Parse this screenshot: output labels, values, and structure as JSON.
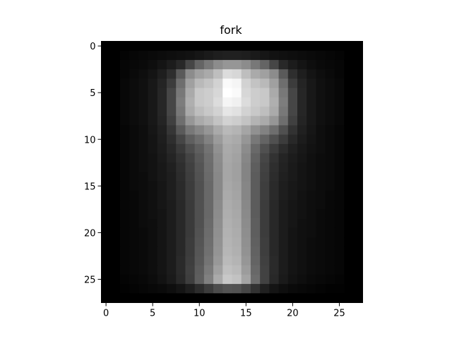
{
  "chart_data": {
    "type": "heatmap",
    "title": "fork",
    "xlabel": "",
    "ylabel": "",
    "colormap": "gray",
    "rows": 28,
    "cols": 28,
    "xlim": [
      -0.5,
      27.5
    ],
    "ylim": [
      27.5,
      -0.5
    ],
    "xticks": [
      0,
      5,
      10,
      15,
      20,
      25
    ],
    "yticks": [
      0,
      5,
      10,
      15,
      20,
      25
    ],
    "grid": false,
    "value_range": [
      0,
      255
    ],
    "description_of_values": "intensity 0 (black) to 255 (white)",
    "values": [
      [
        0,
        0,
        0,
        0,
        0,
        0,
        0,
        0,
        0,
        0,
        0,
        0,
        0,
        0,
        0,
        0,
        0,
        0,
        0,
        0,
        0,
        0,
        0,
        0,
        0,
        0,
        0,
        0
      ],
      [
        0,
        0,
        4,
        6,
        8,
        10,
        12,
        14,
        16,
        18,
        22,
        26,
        30,
        32,
        32,
        30,
        26,
        22,
        18,
        16,
        14,
        12,
        10,
        8,
        6,
        4,
        0,
        0
      ],
      [
        0,
        0,
        6,
        8,
        10,
        14,
        20,
        28,
        40,
        70,
        100,
        120,
        140,
        150,
        150,
        140,
        120,
        100,
        70,
        40,
        28,
        20,
        14,
        10,
        8,
        6,
        0,
        0
      ],
      [
        0,
        0,
        6,
        10,
        14,
        20,
        30,
        46,
        90,
        140,
        160,
        170,
        190,
        220,
        215,
        190,
        170,
        160,
        140,
        90,
        46,
        30,
        20,
        14,
        10,
        6,
        0,
        0
      ],
      [
        0,
        0,
        8,
        12,
        16,
        24,
        36,
        60,
        110,
        160,
        185,
        195,
        210,
        250,
        245,
        210,
        195,
        185,
        160,
        110,
        60,
        36,
        24,
        16,
        12,
        8,
        0,
        0
      ],
      [
        0,
        0,
        8,
        12,
        16,
        24,
        38,
        70,
        120,
        170,
        200,
        205,
        215,
        255,
        250,
        215,
        205,
        200,
        170,
        120,
        70,
        38,
        24,
        16,
        12,
        8,
        0,
        0
      ],
      [
        0,
        0,
        8,
        12,
        16,
        24,
        38,
        70,
        125,
        175,
        200,
        205,
        220,
        245,
        240,
        220,
        205,
        200,
        175,
        125,
        70,
        38,
        24,
        16,
        12,
        8,
        0,
        0
      ],
      [
        0,
        0,
        8,
        12,
        16,
        24,
        38,
        70,
        120,
        170,
        190,
        200,
        210,
        230,
        225,
        210,
        200,
        190,
        170,
        120,
        70,
        38,
        24,
        16,
        12,
        8,
        0,
        0
      ],
      [
        0,
        0,
        8,
        12,
        16,
        24,
        36,
        64,
        110,
        150,
        170,
        180,
        195,
        210,
        205,
        195,
        180,
        170,
        150,
        110,
        64,
        36,
        24,
        16,
        12,
        8,
        0,
        0
      ],
      [
        0,
        0,
        6,
        10,
        14,
        22,
        32,
        54,
        90,
        120,
        135,
        150,
        170,
        185,
        180,
        165,
        145,
        130,
        110,
        80,
        50,
        32,
        22,
        14,
        10,
        6,
        0,
        0
      ],
      [
        0,
        0,
        6,
        10,
        14,
        20,
        30,
        46,
        70,
        95,
        110,
        130,
        155,
        175,
        170,
        150,
        120,
        100,
        80,
        60,
        40,
        28,
        20,
        14,
        10,
        6,
        0,
        0
      ],
      [
        0,
        0,
        6,
        10,
        14,
        20,
        28,
        40,
        58,
        78,
        95,
        115,
        145,
        170,
        165,
        140,
        105,
        80,
        60,
        44,
        32,
        24,
        18,
        14,
        10,
        6,
        0,
        0
      ],
      [
        0,
        0,
        6,
        10,
        14,
        18,
        26,
        36,
        50,
        68,
        88,
        110,
        140,
        168,
        162,
        135,
        98,
        70,
        50,
        36,
        28,
        22,
        16,
        12,
        10,
        6,
        0,
        0
      ],
      [
        0,
        0,
        6,
        10,
        14,
        18,
        24,
        32,
        46,
        64,
        84,
        108,
        138,
        166,
        160,
        132,
        94,
        66,
        46,
        34,
        26,
        20,
        16,
        12,
        10,
        6,
        0,
        0
      ],
      [
        0,
        0,
        6,
        10,
        12,
        18,
        24,
        30,
        44,
        62,
        82,
        106,
        136,
        166,
        160,
        132,
        92,
        64,
        44,
        32,
        26,
        20,
        16,
        12,
        10,
        6,
        0,
        0
      ],
      [
        0,
        0,
        6,
        10,
        12,
        16,
        22,
        30,
        42,
        60,
        80,
        104,
        136,
        168,
        162,
        134,
        92,
        62,
        42,
        30,
        24,
        20,
        16,
        12,
        10,
        6,
        0,
        0
      ],
      [
        0,
        0,
        6,
        8,
        12,
        16,
        22,
        30,
        42,
        60,
        80,
        104,
        136,
        170,
        164,
        134,
        92,
        62,
        42,
        30,
        24,
        18,
        14,
        12,
        8,
        6,
        0,
        0
      ],
      [
        0,
        0,
        6,
        8,
        12,
        16,
        22,
        28,
        40,
        58,
        80,
        104,
        138,
        172,
        166,
        136,
        92,
        60,
        40,
        28,
        22,
        18,
        14,
        12,
        8,
        6,
        0,
        0
      ],
      [
        0,
        0,
        6,
        8,
        12,
        16,
        20,
        28,
        40,
        58,
        80,
        104,
        140,
        174,
        168,
        138,
        92,
        60,
        40,
        28,
        22,
        18,
        14,
        10,
        8,
        6,
        0,
        0
      ],
      [
        0,
        0,
        6,
        8,
        12,
        14,
        20,
        28,
        40,
        58,
        80,
        106,
        142,
        176,
        170,
        140,
        94,
        60,
        40,
        28,
        22,
        16,
        14,
        10,
        8,
        6,
        0,
        0
      ],
      [
        0,
        0,
        6,
        8,
        10,
        14,
        20,
        28,
        40,
        58,
        82,
        108,
        144,
        178,
        172,
        142,
        94,
        60,
        40,
        28,
        20,
        16,
        14,
        10,
        8,
        6,
        0,
        0
      ],
      [
        0,
        0,
        6,
        8,
        10,
        14,
        20,
        28,
        40,
        60,
        84,
        110,
        146,
        180,
        174,
        144,
        96,
        62,
        40,
        28,
        20,
        16,
        12,
        10,
        8,
        6,
        0,
        0
      ],
      [
        0,
        0,
        6,
        8,
        10,
        14,
        20,
        28,
        40,
        60,
        86,
        112,
        148,
        182,
        176,
        146,
        98,
        62,
        40,
        28,
        20,
        16,
        12,
        10,
        8,
        6,
        0,
        0
      ],
      [
        0,
        0,
        6,
        8,
        10,
        14,
        20,
        28,
        42,
        62,
        88,
        116,
        152,
        186,
        180,
        150,
        100,
        64,
        42,
        28,
        20,
        16,
        12,
        10,
        8,
        6,
        0,
        0
      ],
      [
        0,
        0,
        6,
        8,
        10,
        14,
        20,
        28,
        42,
        64,
        92,
        122,
        160,
        192,
        186,
        156,
        104,
        66,
        42,
        28,
        20,
        16,
        12,
        10,
        8,
        6,
        0,
        0
      ],
      [
        0,
        0,
        4,
        6,
        8,
        12,
        18,
        26,
        40,
        62,
        94,
        128,
        170,
        200,
        194,
        164,
        108,
        66,
        40,
        26,
        18,
        14,
        10,
        8,
        6,
        4,
        0,
        0
      ],
      [
        0,
        0,
        2,
        4,
        6,
        8,
        10,
        14,
        20,
        30,
        44,
        60,
        76,
        84,
        82,
        70,
        50,
        32,
        20,
        14,
        10,
        8,
        6,
        4,
        2,
        2,
        0,
        0
      ],
      [
        0,
        0,
        0,
        0,
        0,
        0,
        0,
        0,
        0,
        0,
        0,
        0,
        0,
        0,
        0,
        0,
        0,
        0,
        0,
        0,
        0,
        0,
        0,
        0,
        0,
        0,
        0,
        0
      ]
    ]
  }
}
